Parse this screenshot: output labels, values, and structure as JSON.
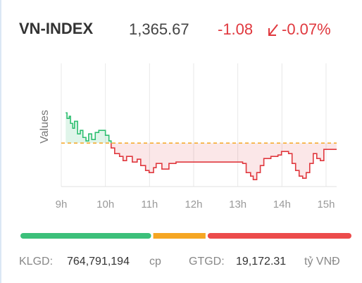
{
  "header": {
    "symbol": "VN-INDEX",
    "price": "1,365.67",
    "change": "-1.08",
    "change_percent": "-0.07%"
  },
  "chart_data": {
    "type": "step-line",
    "y_label": "Values",
    "x": [
      9.1,
      9.13,
      9.18,
      9.21,
      9.26,
      9.3,
      9.37,
      9.43,
      9.49,
      9.56,
      9.62,
      9.69,
      9.77,
      9.85,
      9.96,
      10.0,
      10.08,
      10.13,
      10.21,
      10.32,
      10.4,
      10.48,
      10.61,
      10.72,
      10.8,
      10.91,
      10.99,
      11.09,
      11.15,
      11.28,
      11.44,
      11.6,
      12.4,
      12.88,
      13.11,
      13.19,
      13.29,
      13.35,
      13.43,
      13.51,
      13.59,
      13.75,
      13.91,
      13.99,
      14.15,
      14.23,
      14.31,
      14.39,
      14.47,
      14.55,
      14.63,
      14.71,
      14.79,
      14.87,
      14.95,
      15.24
    ],
    "values": [
      1371.93,
      1370.97,
      1371.33,
      1370.12,
      1369.28,
      1370.48,
      1368.32,
      1368.92,
      1367.71,
      1367.11,
      1368.32,
      1367.35,
      1368.56,
      1368.92,
      1368.92,
      1368.08,
      1367.11,
      1365.91,
      1364.94,
      1364.46,
      1363.74,
      1364.46,
      1363.5,
      1363.98,
      1362.89,
      1362.05,
      1361.69,
      1362.53,
      1363.26,
      1362.29,
      1363.26,
      1363.5,
      1363.5,
      1363.5,
      1363.26,
      1361.69,
      1361.09,
      1360.48,
      1361.69,
      1362.89,
      1364.1,
      1364.46,
      1364.7,
      1365.3,
      1364.94,
      1363.26,
      1362.05,
      1361.09,
      1360.73,
      1361.69,
      1363.26,
      1364.94,
      1364.1,
      1363.74,
      1365.67,
      1365.67
    ],
    "up_color": "#2fbf71",
    "down_color": "#e0383e",
    "baseline": {
      "value": 1366.75,
      "color": "#f5a623"
    },
    "xlim": [
      9,
      15.24
    ],
    "ylim": [
      1359.3,
      1380.4
    ],
    "xticks": [
      {
        "value": 9,
        "label": "9h"
      },
      {
        "value": 10,
        "label": "10h"
      },
      {
        "value": 11,
        "label": "11h"
      },
      {
        "value": 12,
        "label": "12h"
      },
      {
        "value": 13,
        "label": "13h"
      },
      {
        "value": 14,
        "label": "14h"
      },
      {
        "value": 15,
        "label": "15h"
      }
    ],
    "grid": true
  },
  "breadth_bar": [
    {
      "value": 40,
      "color": "#3cc07a"
    },
    {
      "value": 16,
      "color": "#f5a623"
    },
    {
      "value": 44,
      "color": "#ec4b4b"
    }
  ],
  "footer": {
    "volume_label": "KLGD:",
    "volume": "764,791,194",
    "volume_unit": "cp",
    "value_label": "GTGD:",
    "value": "19,172.31",
    "value_unit": "tỷ VNĐ"
  }
}
